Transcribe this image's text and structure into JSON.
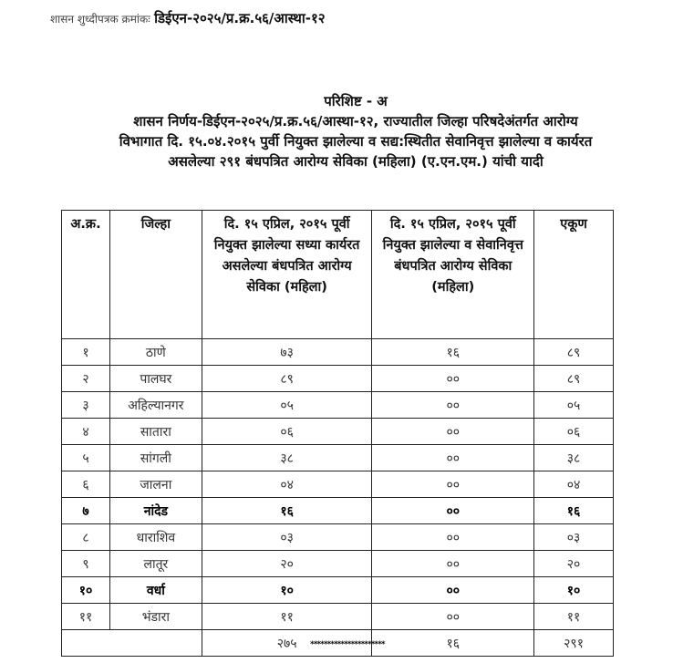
{
  "reference": {
    "label": "शासन शुध्दीपत्रक क्रमांकः",
    "number": "डिईएन-२०२५/प्र.क्र.५६/आस्था-१२"
  },
  "heading": {
    "title": "परिशिष्ट - अ",
    "line1": "शासन निर्णय-डिईएन-२०२५/प्र.क्र.५६/आस्था-१२, राज्यातील जिल्हा परिषदेअंतर्गत आरोग्य",
    "line2": "विभागात दि. १५.०४.२०१५ पुर्वी नियुक्त झालेल्या व सद्य:स्थितीत सेवानिवृत्त झालेल्या व कार्यरत",
    "line3": "असलेल्या २९१ बंधपत्रित आरोग्य सेविका (महिला) (ए.एन.एम.) यांची यादी"
  },
  "table": {
    "headers": [
      "अ.क्र.",
      "जिल्हा",
      "दि. १५ एप्रिल, २०१५ पूर्वी नियुक्त झालेल्या सध्या कार्यरत असलेल्या बंधपत्रित आरोग्य सेविका (महिला)",
      "दि. १५ एप्रिल, २०१५ पूर्वी नियुक्त झालेल्या व सेवानिवृत्त बंधपत्रित आरोग्य सेविका (महिला)",
      "एकूण"
    ],
    "rows": [
      {
        "no": "१",
        "district": "ठाणे",
        "working": "७३",
        "retired": "१६",
        "total": "८९",
        "bold": false
      },
      {
        "no": "२",
        "district": "पालघर",
        "working": "८९",
        "retired": "००",
        "total": "८९",
        "bold": false
      },
      {
        "no": "३",
        "district": "अहिल्यानगर",
        "working": "०५",
        "retired": "००",
        "total": "०५",
        "bold": false
      },
      {
        "no": "४",
        "district": "सातारा",
        "working": "०६",
        "retired": "००",
        "total": "०६",
        "bold": false
      },
      {
        "no": "५",
        "district": "सांगली",
        "working": "३८",
        "retired": "००",
        "total": "३८",
        "bold": false
      },
      {
        "no": "६",
        "district": "जालना",
        "working": "०४",
        "retired": "००",
        "total": "०४",
        "bold": false
      },
      {
        "no": "७",
        "district": "नांदेड",
        "working": "१६",
        "retired": "००",
        "total": "१६",
        "bold": true
      },
      {
        "no": "८",
        "district": "धाराशिव",
        "working": "०३",
        "retired": "००",
        "total": "०३",
        "bold": false
      },
      {
        "no": "९",
        "district": "लातूर",
        "working": "२०",
        "retired": "००",
        "total": "२०",
        "bold": false
      },
      {
        "no": "१०",
        "district": "वर्धा",
        "working": "१०",
        "retired": "००",
        "total": "१०",
        "bold": true
      },
      {
        "no": "११",
        "district": "भंडारा",
        "working": "११",
        "retired": "००",
        "total": "११",
        "bold": false
      }
    ],
    "totals": {
      "working": "२७५",
      "retired": "१६",
      "total": "२९१"
    }
  },
  "footer_stars": "**********************"
}
